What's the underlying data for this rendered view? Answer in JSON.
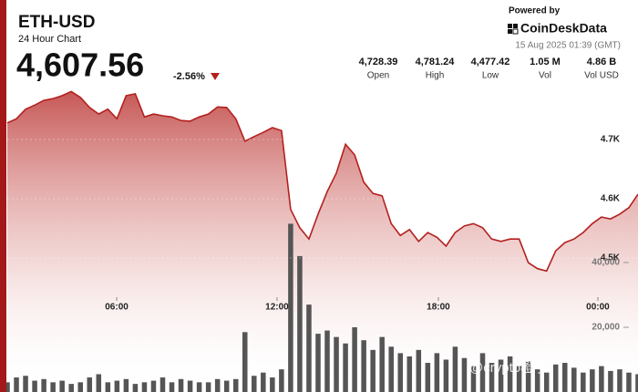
{
  "header": {
    "title": "ETH-USD",
    "subtitle": "24 Hour Chart",
    "price": "4,607.56",
    "change": "-2.56%",
    "powered_by": "Powered by",
    "brand": "CoinDeskData",
    "timestamp": "15 Aug 2025 01:39 (GMT)",
    "stats": [
      {
        "value": "4,728.39",
        "label": "Open"
      },
      {
        "value": "4,781.24",
        "label": "High"
      },
      {
        "value": "4,477.42",
        "label": "Low"
      },
      {
        "value": "1.05 M",
        "label": "Vol"
      },
      {
        "value": "4.86 B",
        "label": "Vol USD"
      }
    ]
  },
  "watermark": "@crypto橙子",
  "chart_data": {
    "type": "line",
    "xlim": [
      0,
      69
    ],
    "xticks": [
      {
        "value": 11.97,
        "label": "06:00"
      },
      {
        "value": 29.51,
        "label": "12:00"
      },
      {
        "value": 47.16,
        "label": "18:00"
      },
      {
        "value": 64.61,
        "label": "00:00"
      }
    ],
    "ylim": [
      4300,
      4800
    ],
    "yticks": [
      {
        "value": 4500,
        "label": "4.5K"
      },
      {
        "value": 4600,
        "label": "4.6K"
      },
      {
        "value": 4700,
        "label": "4.7K"
      }
    ],
    "y2lim": [
      0,
      60000
    ],
    "y2ticks": [
      {
        "value": 20000,
        "label": "20,000"
      },
      {
        "value": 40000,
        "label": "40,000"
      }
    ],
    "series": [
      {
        "type": "line",
        "color": "#b3201e",
        "values": [
          4728,
          4735,
          4751,
          4758,
          4766,
          4769,
          4774,
          4781,
          4771,
          4754,
          4743,
          4751,
          4735,
          4774,
          4777,
          4738,
          4743,
          4740,
          4738,
          4732,
          4731,
          4738,
          4743,
          4755,
          4754,
          4735,
          4697,
          4705,
          4712,
          4720,
          4715,
          4582,
          4551,
          4532,
          4574,
          4612,
          4643,
          4692,
          4674,
          4628,
          4609,
          4605,
          4558,
          4538,
          4548,
          4528,
          4543,
          4535,
          4520,
          4543,
          4554,
          4558,
          4551,
          4532,
          4528,
          4532,
          4532,
          4492,
          4482,
          4478,
          4512,
          4526,
          4532,
          4543,
          4558,
          4569,
          4566,
          4574,
          4585,
          4607.56
        ]
      },
      {
        "type": "bar",
        "axis": "y2",
        "color": "#555555",
        "values": [
          3000,
          4500,
          5000,
          3500,
          4000,
          3000,
          3500,
          2500,
          3000,
          4500,
          5500,
          3000,
          3500,
          4000,
          2500,
          3000,
          3500,
          4500,
          3000,
          4000,
          3500,
          3000,
          3000,
          4000,
          3500,
          4000,
          18500,
          5000,
          6000,
          4500,
          7000,
          52000,
          42000,
          27000,
          18000,
          19000,
          17000,
          15000,
          20000,
          16000,
          13000,
          17000,
          14000,
          12000,
          11000,
          13000,
          9000,
          12000,
          10000,
          14000,
          10500,
          8000,
          12000,
          9000,
          10000,
          11000,
          8000,
          9500,
          7000,
          6000,
          8500,
          9000,
          7500,
          6000,
          7000,
          8000,
          6500,
          7000,
          6000,
          5500
        ]
      }
    ]
  }
}
